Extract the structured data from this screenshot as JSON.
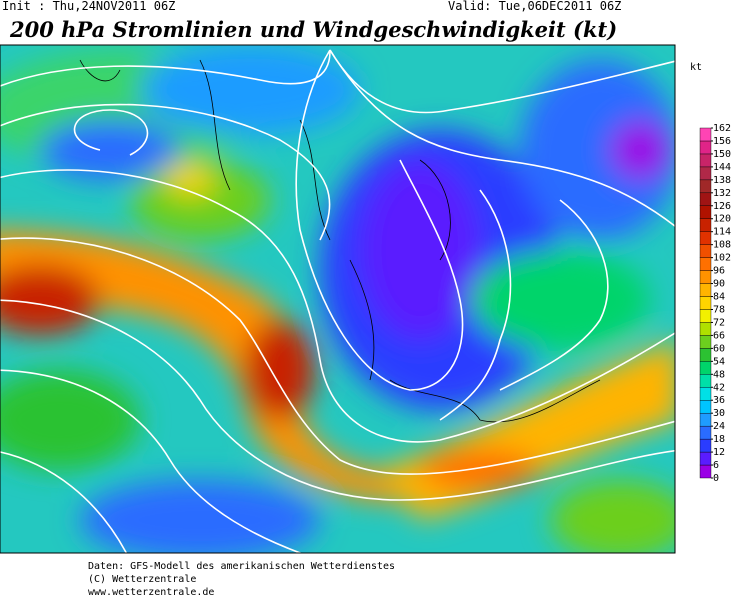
{
  "header": {
    "init": "Init : Thu,24NOV2011 06Z",
    "valid": "Valid: Tue,06DEC2011 06Z",
    "title": "200 hPa Stromlinien und Windgeschwindigkeit (kt)"
  },
  "colorbar": {
    "unit": "kt",
    "ticks": [
      0,
      6,
      12,
      18,
      24,
      30,
      36,
      42,
      48,
      54,
      60,
      66,
      72,
      78,
      84,
      90,
      96,
      102,
      108,
      114,
      120,
      126,
      132,
      138,
      144,
      150,
      156,
      162
    ],
    "colors": [
      "#9a00e6",
      "#5a1cff",
      "#2a3cff",
      "#2a6cff",
      "#1f9cff",
      "#00c4ff",
      "#00e0e6",
      "#00e0a8",
      "#00d46a",
      "#2cc232",
      "#6ccf1e",
      "#b0e000",
      "#f2f000",
      "#ffd400",
      "#ffb400",
      "#ff9200",
      "#ff7000",
      "#f05000",
      "#e03200",
      "#c82200",
      "#b01200",
      "#a01414",
      "#a02828",
      "#b02848",
      "#c82468",
      "#e02488",
      "#ff44b4"
    ]
  },
  "footer": {
    "lines": [
      "Daten: GFS-Modell des amerikanischen Wetterdienstes",
      "(C) Wetterzentrale",
      "www.wetterzentrale.de"
    ]
  }
}
